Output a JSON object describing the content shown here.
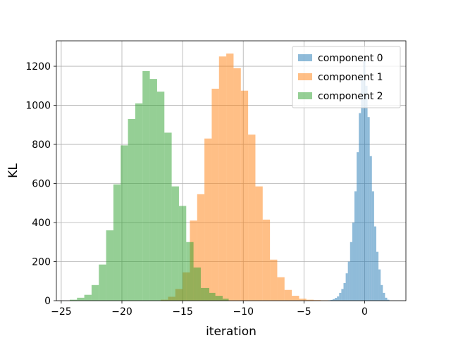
{
  "chart_data": {
    "type": "histogram",
    "title": "",
    "xlabel": "iteration",
    "ylabel": "KL",
    "xlim": [
      -25.4,
      3.4
    ],
    "ylim": [
      0,
      1330
    ],
    "xticks": [
      -25,
      -20,
      -15,
      -10,
      -5,
      0
    ],
    "xtick_labels": [
      "−25",
      "−20",
      "−15",
      "−10",
      "−5",
      "0"
    ],
    "yticks": [
      0,
      200,
      400,
      600,
      800,
      1000,
      1200
    ],
    "ytick_labels": [
      "0",
      "200",
      "400",
      "600",
      "800",
      "1000",
      "1200"
    ],
    "grid": true,
    "legend_position": "top-right",
    "series": [
      {
        "name": "component 0",
        "color": "#1f77b4",
        "alpha": 0.5,
        "bin_edges": [
          -3.0,
          -2.82,
          -2.64,
          -2.46,
          -2.28,
          -2.1,
          -1.92,
          -1.74,
          -1.56,
          -1.38,
          -1.2,
          -1.02,
          -0.84,
          -0.66,
          -0.48,
          -0.3,
          -0.12,
          0.06,
          0.24,
          0.42,
          0.6,
          0.78,
          0.96,
          1.14,
          1.32,
          1.5,
          1.68,
          1.86,
          2.04
        ],
        "counts": [
          2,
          4,
          8,
          14,
          22,
          40,
          60,
          90,
          140,
          200,
          300,
          400,
          560,
          760,
          960,
          1140,
          1230,
          1100,
          940,
          740,
          560,
          380,
          250,
          160,
          80,
          40,
          15,
          5
        ]
      },
      {
        "name": "component 1",
        "color": "#ff7f0e",
        "alpha": 0.5,
        "bin_edges": [
          -16.8,
          -16.2,
          -15.6,
          -15.0,
          -14.4,
          -13.8,
          -13.2,
          -12.6,
          -12.0,
          -11.4,
          -10.8,
          -10.2,
          -9.6,
          -9.0,
          -8.4,
          -7.8,
          -7.2,
          -6.6,
          -6.0,
          -5.4,
          -4.8,
          -4.2,
          -3.6,
          -3.0
        ],
        "counts": [
          5,
          20,
          60,
          145,
          410,
          545,
          830,
          1085,
          1250,
          1265,
          1190,
          1075,
          850,
          585,
          415,
          210,
          120,
          55,
          25,
          10,
          5,
          3,
          2
        ]
      },
      {
        "name": "component 2",
        "color": "#2ca02c",
        "alpha": 0.5,
        "bin_edges": [
          -24.3,
          -23.7,
          -23.1,
          -22.5,
          -21.9,
          -21.3,
          -20.7,
          -20.1,
          -19.5,
          -18.9,
          -18.3,
          -17.7,
          -17.1,
          -16.5,
          -15.9,
          -15.3,
          -14.7,
          -14.1,
          -13.5,
          -12.8,
          -12.3,
          -11.7,
          -11.2
        ],
        "counts": [
          5,
          15,
          30,
          80,
          185,
          360,
          595,
          795,
          930,
          1010,
          1175,
          1135,
          1070,
          860,
          585,
          485,
          300,
          170,
          65,
          40,
          25,
          10
        ]
      }
    ]
  }
}
